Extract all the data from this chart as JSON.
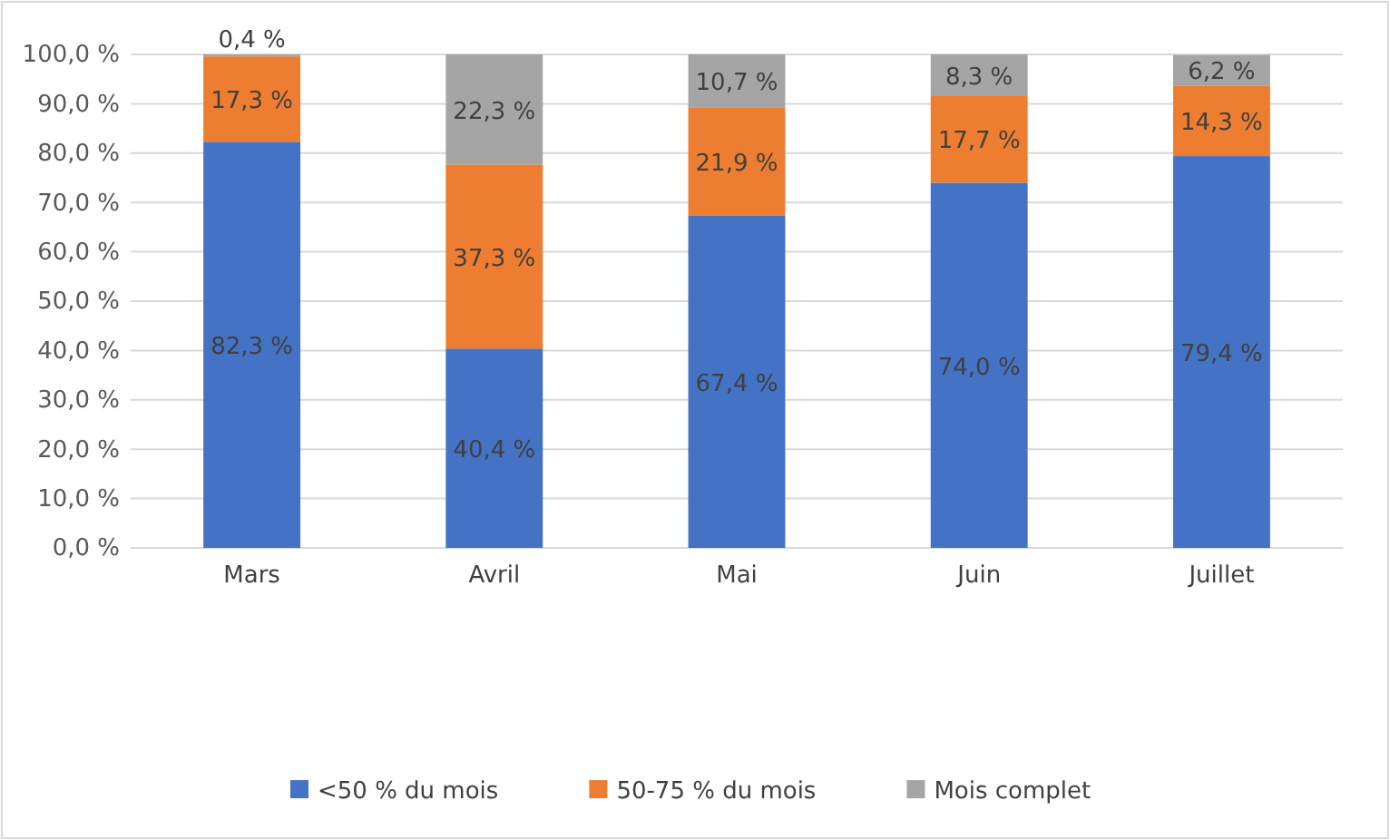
{
  "chart_data": {
    "type": "bar",
    "stacked": true,
    "categories": [
      "Mars",
      "Avril",
      "Mai",
      "Juin",
      "Juillet"
    ],
    "series": [
      {
        "name": "<50 % du mois",
        "color": "#4472c4",
        "values": [
          82.3,
          40.4,
          67.4,
          74.0,
          79.4
        ],
        "value_labels": [
          "82,3 %",
          "40,4 %",
          "67,4 %",
          "74,0 %",
          "79,4 %"
        ]
      },
      {
        "name": "50-75 % du mois",
        "color": "#ed7d31",
        "values": [
          17.3,
          37.3,
          21.9,
          17.7,
          14.3
        ],
        "value_labels": [
          "17,3 %",
          "37,3 %",
          "21,9 %",
          "17,7 %",
          "14,3 %"
        ]
      },
      {
        "name": "Mois complet",
        "color": "#a5a5a5",
        "values": [
          0.4,
          22.3,
          10.7,
          8.3,
          6.2
        ],
        "value_labels": [
          "0,4 %",
          "22,3 %",
          "10,7 %",
          "8,3 %",
          "6,2 %"
        ]
      }
    ],
    "ylim": [
      0,
      100
    ],
    "yticks": [
      {
        "value": 0,
        "label": "0,0 %"
      },
      {
        "value": 10,
        "label": "10,0 %"
      },
      {
        "value": 20,
        "label": "20,0 %"
      },
      {
        "value": 30,
        "label": "30,0 %"
      },
      {
        "value": 40,
        "label": "40,0 %"
      },
      {
        "value": 50,
        "label": "50,0 %"
      },
      {
        "value": 60,
        "label": "60,0 %"
      },
      {
        "value": 70,
        "label": "70,0 %"
      },
      {
        "value": 80,
        "label": "80,0 %"
      },
      {
        "value": 90,
        "label": "90,0 %"
      },
      {
        "value": 100,
        "label": "100,0 %"
      }
    ],
    "grid": "y",
    "legend": "bottom"
  }
}
